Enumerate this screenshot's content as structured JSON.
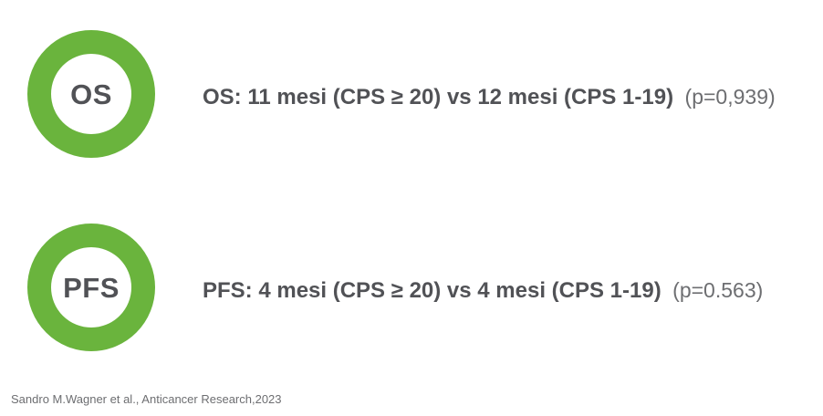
{
  "colors": {
    "accent": "#6ab43d",
    "dark": "#515256",
    "muted": "#6d6e71",
    "background": "#ffffff"
  },
  "rows": [
    {
      "badge": "OS",
      "main": "OS: 11 mesi (CPS ≥ 20) vs 12 mesi (CPS 1-19)",
      "pvalue": "(p=0,939)"
    },
    {
      "badge": "PFS",
      "main": "PFS: 4 mesi (CPS ≥ 20) vs 4 mesi (CPS 1-19)",
      "pvalue": "(p=0.563)"
    }
  ],
  "citation": "Sandro M.Wagner et al., Anticancer Research,2023"
}
